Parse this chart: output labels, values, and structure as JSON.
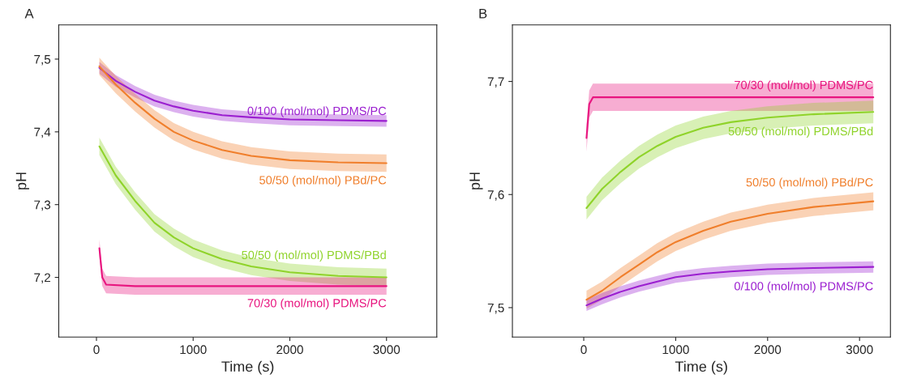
{
  "chart_data": [
    {
      "type": "line",
      "title": "A",
      "xlabel": "Time (s)",
      "ylabel": "pH",
      "xlim": [
        -390,
        3520
      ],
      "ylim": [
        7.118,
        7.547
      ],
      "xticks": [
        0,
        1000,
        2000,
        3000
      ],
      "yticks": [
        {
          "value": 7.2,
          "label": "7,2"
        },
        {
          "value": 7.3,
          "label": "7,3"
        },
        {
          "value": 7.4,
          "label": "7,4"
        },
        {
          "value": 7.5,
          "label": "7,5"
        }
      ],
      "grid": false,
      "legend": false,
      "x": [
        30,
        200,
        400,
        600,
        800,
        1000,
        1300,
        1600,
        2000,
        2500,
        3000
      ],
      "series": [
        {
          "name": "0/100 (mol/mol) PDMS/PC",
          "color": "#9b1fd0",
          "values": [
            7.488,
            7.47,
            7.455,
            7.443,
            7.435,
            7.429,
            7.423,
            7.42,
            7.417,
            7.416,
            7.415
          ],
          "lower": [
            7.48,
            7.462,
            7.447,
            7.435,
            7.427,
            7.421,
            7.415,
            7.412,
            7.409,
            7.408,
            7.407
          ],
          "upper": [
            7.496,
            7.478,
            7.463,
            7.451,
            7.443,
            7.437,
            7.431,
            7.428,
            7.425,
            7.424,
            7.423
          ]
        },
        {
          "name": "50/50 (mol/mol) PBd/PC",
          "color": "#f07f2c",
          "values": [
            7.49,
            7.465,
            7.44,
            7.418,
            7.4,
            7.388,
            7.375,
            7.367,
            7.361,
            7.358,
            7.357
          ],
          "lower": [
            7.478,
            7.453,
            7.428,
            7.406,
            7.388,
            7.376,
            7.363,
            7.355,
            7.349,
            7.346,
            7.345
          ],
          "upper": [
            7.502,
            7.477,
            7.452,
            7.43,
            7.412,
            7.4,
            7.387,
            7.379,
            7.373,
            7.37,
            7.369
          ]
        },
        {
          "name": "50/50 (mol/mol) PDMS/PBd",
          "color": "#8fd32a",
          "values": [
            7.38,
            7.34,
            7.305,
            7.275,
            7.255,
            7.24,
            7.225,
            7.215,
            7.207,
            7.202,
            7.2
          ],
          "lower": [
            7.368,
            7.328,
            7.293,
            7.263,
            7.243,
            7.228,
            7.213,
            7.203,
            7.195,
            7.19,
            7.188
          ],
          "upper": [
            7.392,
            7.352,
            7.317,
            7.287,
            7.267,
            7.252,
            7.237,
            7.227,
            7.219,
            7.214,
            7.212
          ]
        },
        {
          "name": "70/30 (mol/mol) PDMS/PC",
          "color": "#e8157f",
          "x": [
            30,
            60,
            100,
            400,
            1000,
            2000,
            3000
          ],
          "values": [
            7.24,
            7.2,
            7.19,
            7.188,
            7.188,
            7.188,
            7.188
          ],
          "lower": [
            7.228,
            7.188,
            7.178,
            7.176,
            7.176,
            7.176,
            7.176
          ],
          "upper": [
            7.252,
            7.212,
            7.202,
            7.2,
            7.2,
            7.2,
            7.2
          ]
        }
      ]
    },
    {
      "type": "line",
      "title": "B",
      "xlabel": "Time (s)",
      "ylabel": "pH",
      "xlim": [
        -776,
        3336
      ],
      "ylim": [
        7.474,
        7.75
      ],
      "xticks": [
        0,
        1000,
        2000,
        3000
      ],
      "yticks": [
        {
          "value": 7.5,
          "label": "7,5"
        },
        {
          "value": 7.6,
          "label": "7,6"
        },
        {
          "value": 7.7,
          "label": "7,7"
        }
      ],
      "grid": false,
      "legend": false,
      "x": [
        30,
        200,
        400,
        600,
        800,
        1000,
        1300,
        1600,
        2000,
        2500,
        3150
      ],
      "series": [
        {
          "name": "70/30 (mol/mol) PDMS/PC",
          "color": "#e8157f",
          "x": [
            30,
            60,
            100,
            400,
            1000,
            2000,
            3150
          ],
          "values": [
            7.65,
            7.68,
            7.686,
            7.686,
            7.686,
            7.686,
            7.686
          ],
          "lower": [
            7.638,
            7.668,
            7.674,
            7.674,
            7.674,
            7.674,
            7.674
          ],
          "upper": [
            7.662,
            7.692,
            7.698,
            7.698,
            7.698,
            7.698,
            7.698
          ]
        },
        {
          "name": "50/50 (mol/mol) PDMS/PBd",
          "color": "#8fd32a",
          "values": [
            7.588,
            7.605,
            7.62,
            7.633,
            7.643,
            7.651,
            7.659,
            7.664,
            7.668,
            7.671,
            7.673
          ],
          "lower": [
            7.578,
            7.595,
            7.61,
            7.623,
            7.633,
            7.641,
            7.649,
            7.654,
            7.658,
            7.661,
            7.663
          ],
          "upper": [
            7.598,
            7.615,
            7.63,
            7.643,
            7.653,
            7.661,
            7.669,
            7.674,
            7.678,
            7.681,
            7.683
          ]
        },
        {
          "name": "50/50 (mol/mol) PBd/PC",
          "color": "#f07f2c",
          "values": [
            7.507,
            7.515,
            7.527,
            7.538,
            7.549,
            7.558,
            7.568,
            7.576,
            7.583,
            7.589,
            7.594
          ],
          "lower": [
            7.499,
            7.507,
            7.519,
            7.53,
            7.541,
            7.55,
            7.56,
            7.568,
            7.575,
            7.581,
            7.586
          ],
          "upper": [
            7.515,
            7.523,
            7.535,
            7.546,
            7.557,
            7.566,
            7.576,
            7.584,
            7.591,
            7.597,
            7.602
          ]
        },
        {
          "name": "0/100 (mol/mol) PDMS/PC",
          "color": "#9b1fd0",
          "values": [
            7.502,
            7.508,
            7.514,
            7.519,
            7.523,
            7.527,
            7.53,
            7.532,
            7.534,
            7.535,
            7.536
          ],
          "lower": [
            7.497,
            7.503,
            7.509,
            7.514,
            7.518,
            7.522,
            7.525,
            7.527,
            7.529,
            7.53,
            7.531
          ],
          "upper": [
            7.507,
            7.513,
            7.519,
            7.524,
            7.528,
            7.532,
            7.535,
            7.537,
            7.539,
            7.54,
            7.541
          ]
        }
      ]
    }
  ]
}
